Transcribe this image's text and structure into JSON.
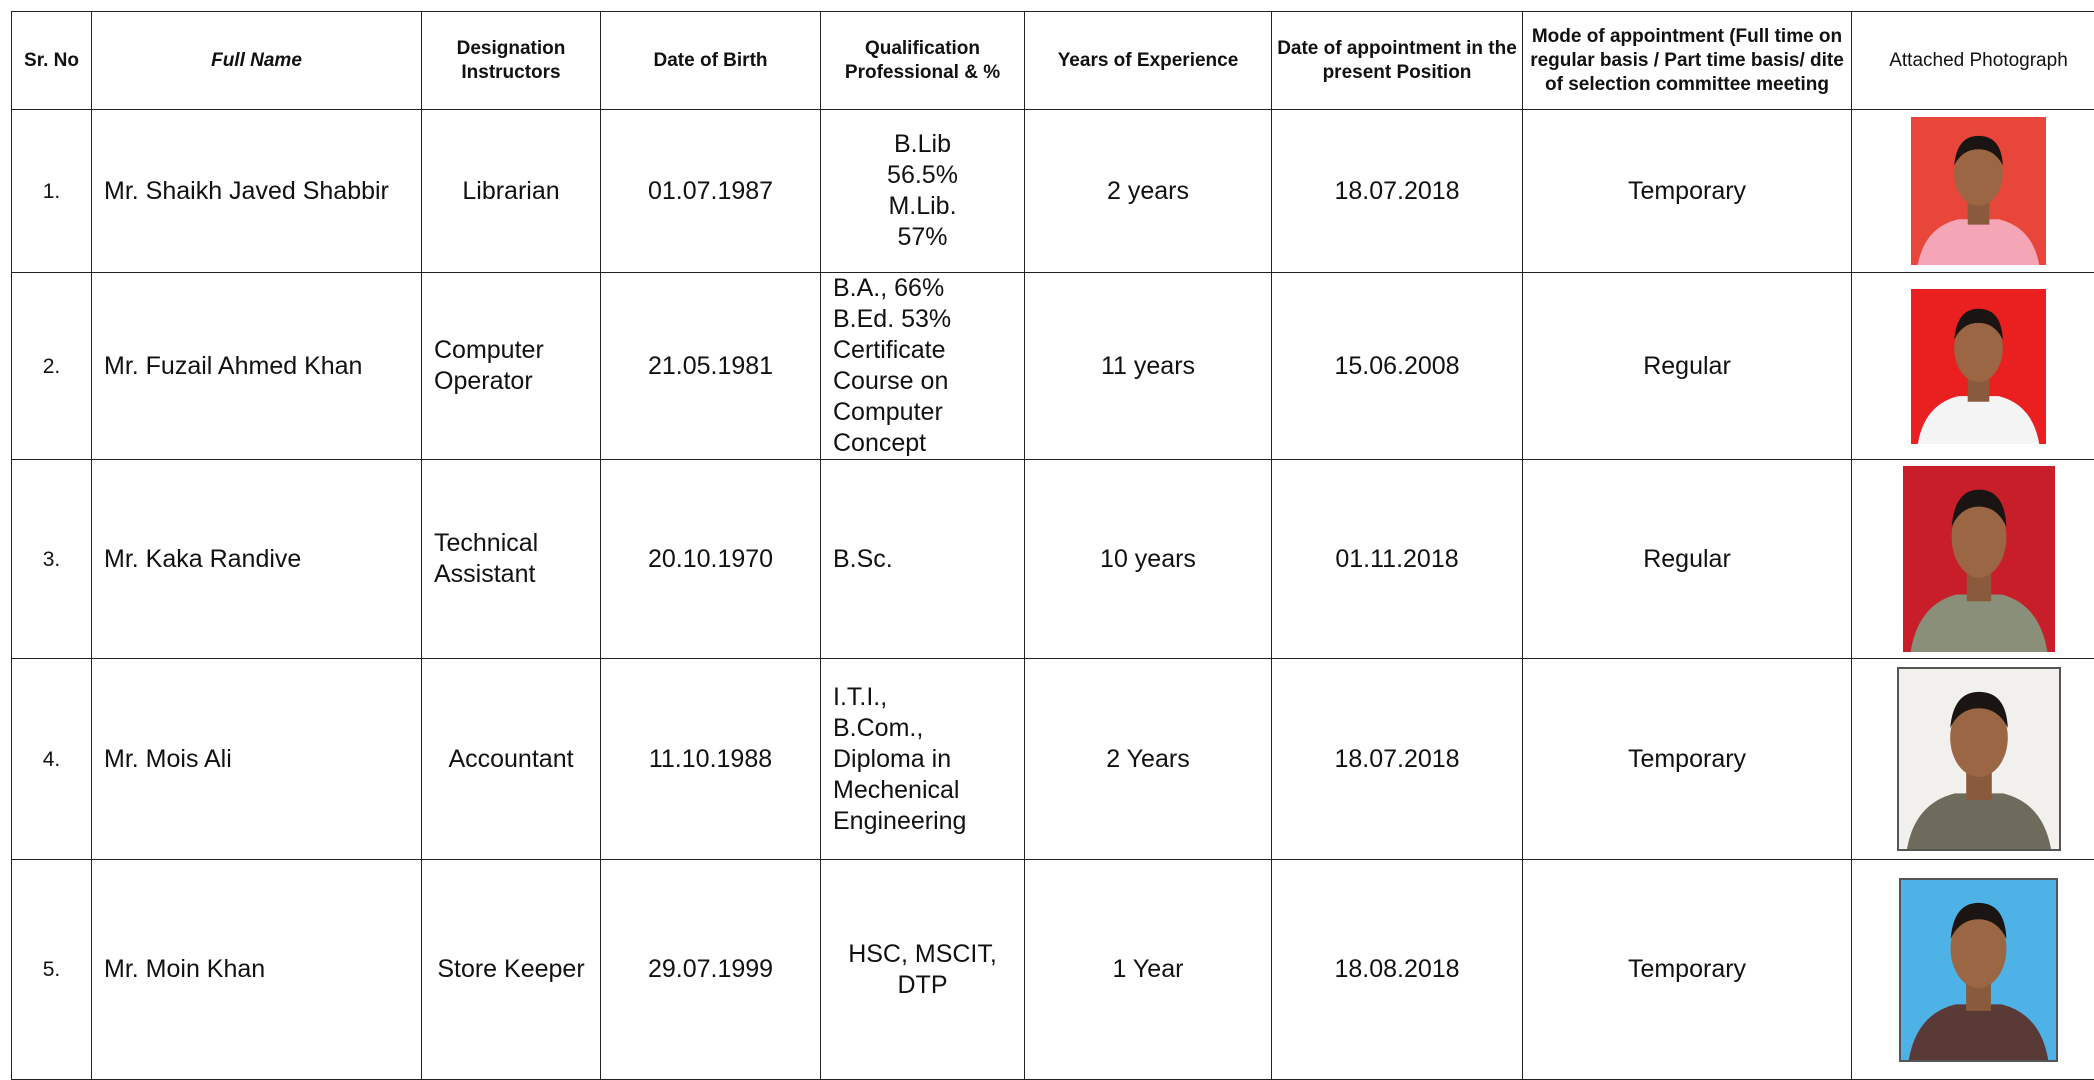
{
  "table": {
    "headers": [
      "Sr. No",
      "Full Name",
      "Designation Instructors",
      "Date of Birth",
      "Qualification Professional & %",
      "Years of Experience",
      "Date of appointment in the present Position",
      "Mode of appointment (Full time on regular basis / Part time basis/ dite of  selection committee meeting",
      "Attached Photograph"
    ],
    "rows": [
      {
        "sr": "1.",
        "name": "Mr. Shaikh Javed Shabbir",
        "designation": "Librarian",
        "dob": "01.07.1987",
        "qualification": [
          "B.Lib",
          "56.5%",
          "M.Lib.",
          "57%"
        ],
        "experience": "2 years",
        "appointment_date": "18.07.2018",
        "mode": "Temporary"
      },
      {
        "sr": "2.",
        "name": "Mr. Fuzail Ahmed Khan",
        "designation": "Computer Operator",
        "dob": "21.05.1981",
        "qualification": [
          "B.A., 66%",
          "B.Ed. 53%",
          "Certificate",
          "Course on",
          "Computer",
          "Concept"
        ],
        "experience": "11 years",
        "appointment_date": "15.06.2008",
        "mode": "Regular"
      },
      {
        "sr": "3.",
        "name": "Mr. Kaka Randive",
        "designation": "Technical Assistant",
        "dob": "20.10.1970",
        "qualification": [
          "B.Sc."
        ],
        "experience": "10 years",
        "appointment_date": "01.11.2018",
        "mode": "Regular"
      },
      {
        "sr": "4.",
        "name": "Mr. Mois Ali",
        "designation": "Accountant",
        "dob": "11.10.1988",
        "qualification": [
          "I.T.I.,",
          "B.Com.,",
          "Diploma in",
          "Mechenical",
          "Engineering"
        ],
        "experience": "2 Years",
        "appointment_date": "18.07.2018",
        "mode": "Temporary"
      },
      {
        "sr": "5.",
        "name": "Mr. Moin Khan",
        "designation": "Store Keeper",
        "dob": "29.07.1999",
        "qualification": [
          "HSC, MSCIT,",
          "DTP"
        ],
        "experience": "1 Year",
        "appointment_date": "18.08.2018",
        "mode": "Temporary"
      }
    ]
  }
}
